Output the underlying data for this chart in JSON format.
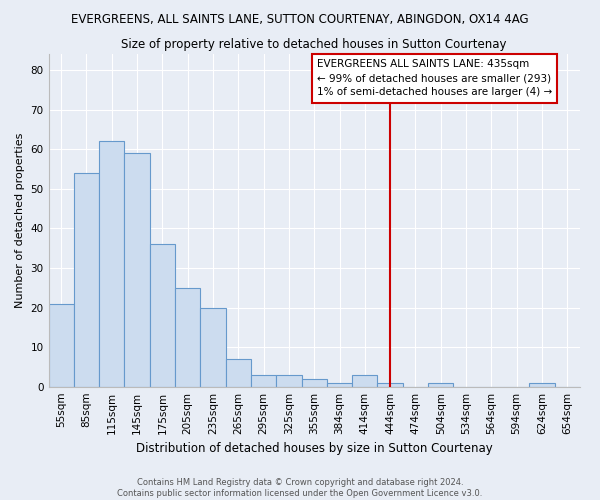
{
  "title": "EVERGREENS, ALL SAINTS LANE, SUTTON COURTENAY, ABINGDON, OX14 4AG",
  "subtitle": "Size of property relative to detached houses in Sutton Courtenay",
  "xlabel": "Distribution of detached houses by size in Sutton Courtenay",
  "ylabel": "Number of detached properties",
  "bar_labels": [
    "55sqm",
    "85sqm",
    "115sqm",
    "145sqm",
    "175sqm",
    "205sqm",
    "235sqm",
    "265sqm",
    "295sqm",
    "325sqm",
    "355sqm",
    "384sqm",
    "414sqm",
    "444sqm",
    "474sqm",
    "504sqm",
    "534sqm",
    "564sqm",
    "594sqm",
    "624sqm",
    "654sqm"
  ],
  "bar_values": [
    21,
    54,
    62,
    59,
    36,
    25,
    20,
    7,
    3,
    3,
    2,
    1,
    3,
    1,
    0,
    1,
    0,
    0,
    0,
    1,
    0
  ],
  "bar_color": "#ccdcef",
  "bar_edge_color": "#6699cc",
  "background_color": "#e8edf5",
  "grid_color": "#ffffff",
  "vline_color": "#cc0000",
  "vline_x_index": 13,
  "legend_title": "EVERGREENS ALL SAINTS LANE: 435sqm",
  "legend_line1": "← 99% of detached houses are smaller (293)",
  "legend_line2": "1% of semi-detached houses are larger (4) →",
  "footer": "Contains HM Land Registry data © Crown copyright and database right 2024.\nContains public sector information licensed under the Open Government Licence v3.0.",
  "ylim": [
    0,
    84
  ],
  "yticks": [
    0,
    10,
    20,
    30,
    40,
    50,
    60,
    70,
    80
  ],
  "title_fontsize": 8.5,
  "subtitle_fontsize": 8.5,
  "xlabel_fontsize": 8.5,
  "ylabel_fontsize": 8.0,
  "tick_fontsize": 7.5,
  "legend_fontsize": 7.5,
  "footer_fontsize": 6.0
}
